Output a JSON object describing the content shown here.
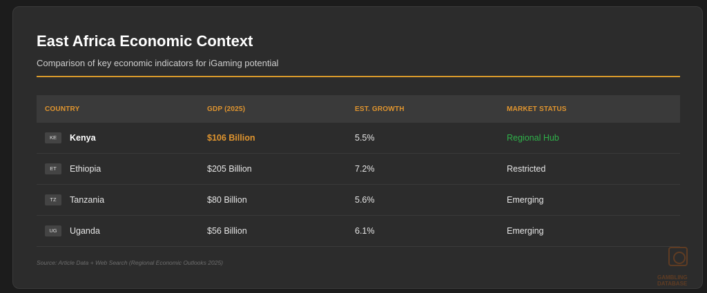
{
  "card": {
    "title": "East Africa Economic Context",
    "subtitle": "Comparison of key economic indicators for iGaming potential"
  },
  "table": {
    "headers": [
      "COUNTRY",
      "GDP (2025)",
      "EST. GROWTH",
      "MARKET STATUS"
    ],
    "rows": [
      {
        "code": "KE",
        "country": "Kenya",
        "gdp": "$106 Billion",
        "growth": "5.5%",
        "status": "Regional Hub"
      },
      {
        "code": "ET",
        "country": "Ethiopia",
        "gdp": "$205 Billion",
        "growth": "7.2%",
        "status": "Restricted"
      },
      {
        "code": "TZ",
        "country": "Tanzania",
        "gdp": "$80 Billion",
        "growth": "5.6%",
        "status": "Emerging"
      },
      {
        "code": "UG",
        "country": "Uganda",
        "gdp": "$56 Billion",
        "growth": "6.1%",
        "status": "Emerging"
      }
    ]
  },
  "source": "Source: Article Data + Web Search (Regional Economic Outlooks 2025)",
  "watermark": {
    "line1": "GAMBLING",
    "line2": "DATABASE"
  },
  "colors": {
    "accent": "#e0952f",
    "hub": "#2fb24a",
    "background": "#2c2c2c"
  }
}
